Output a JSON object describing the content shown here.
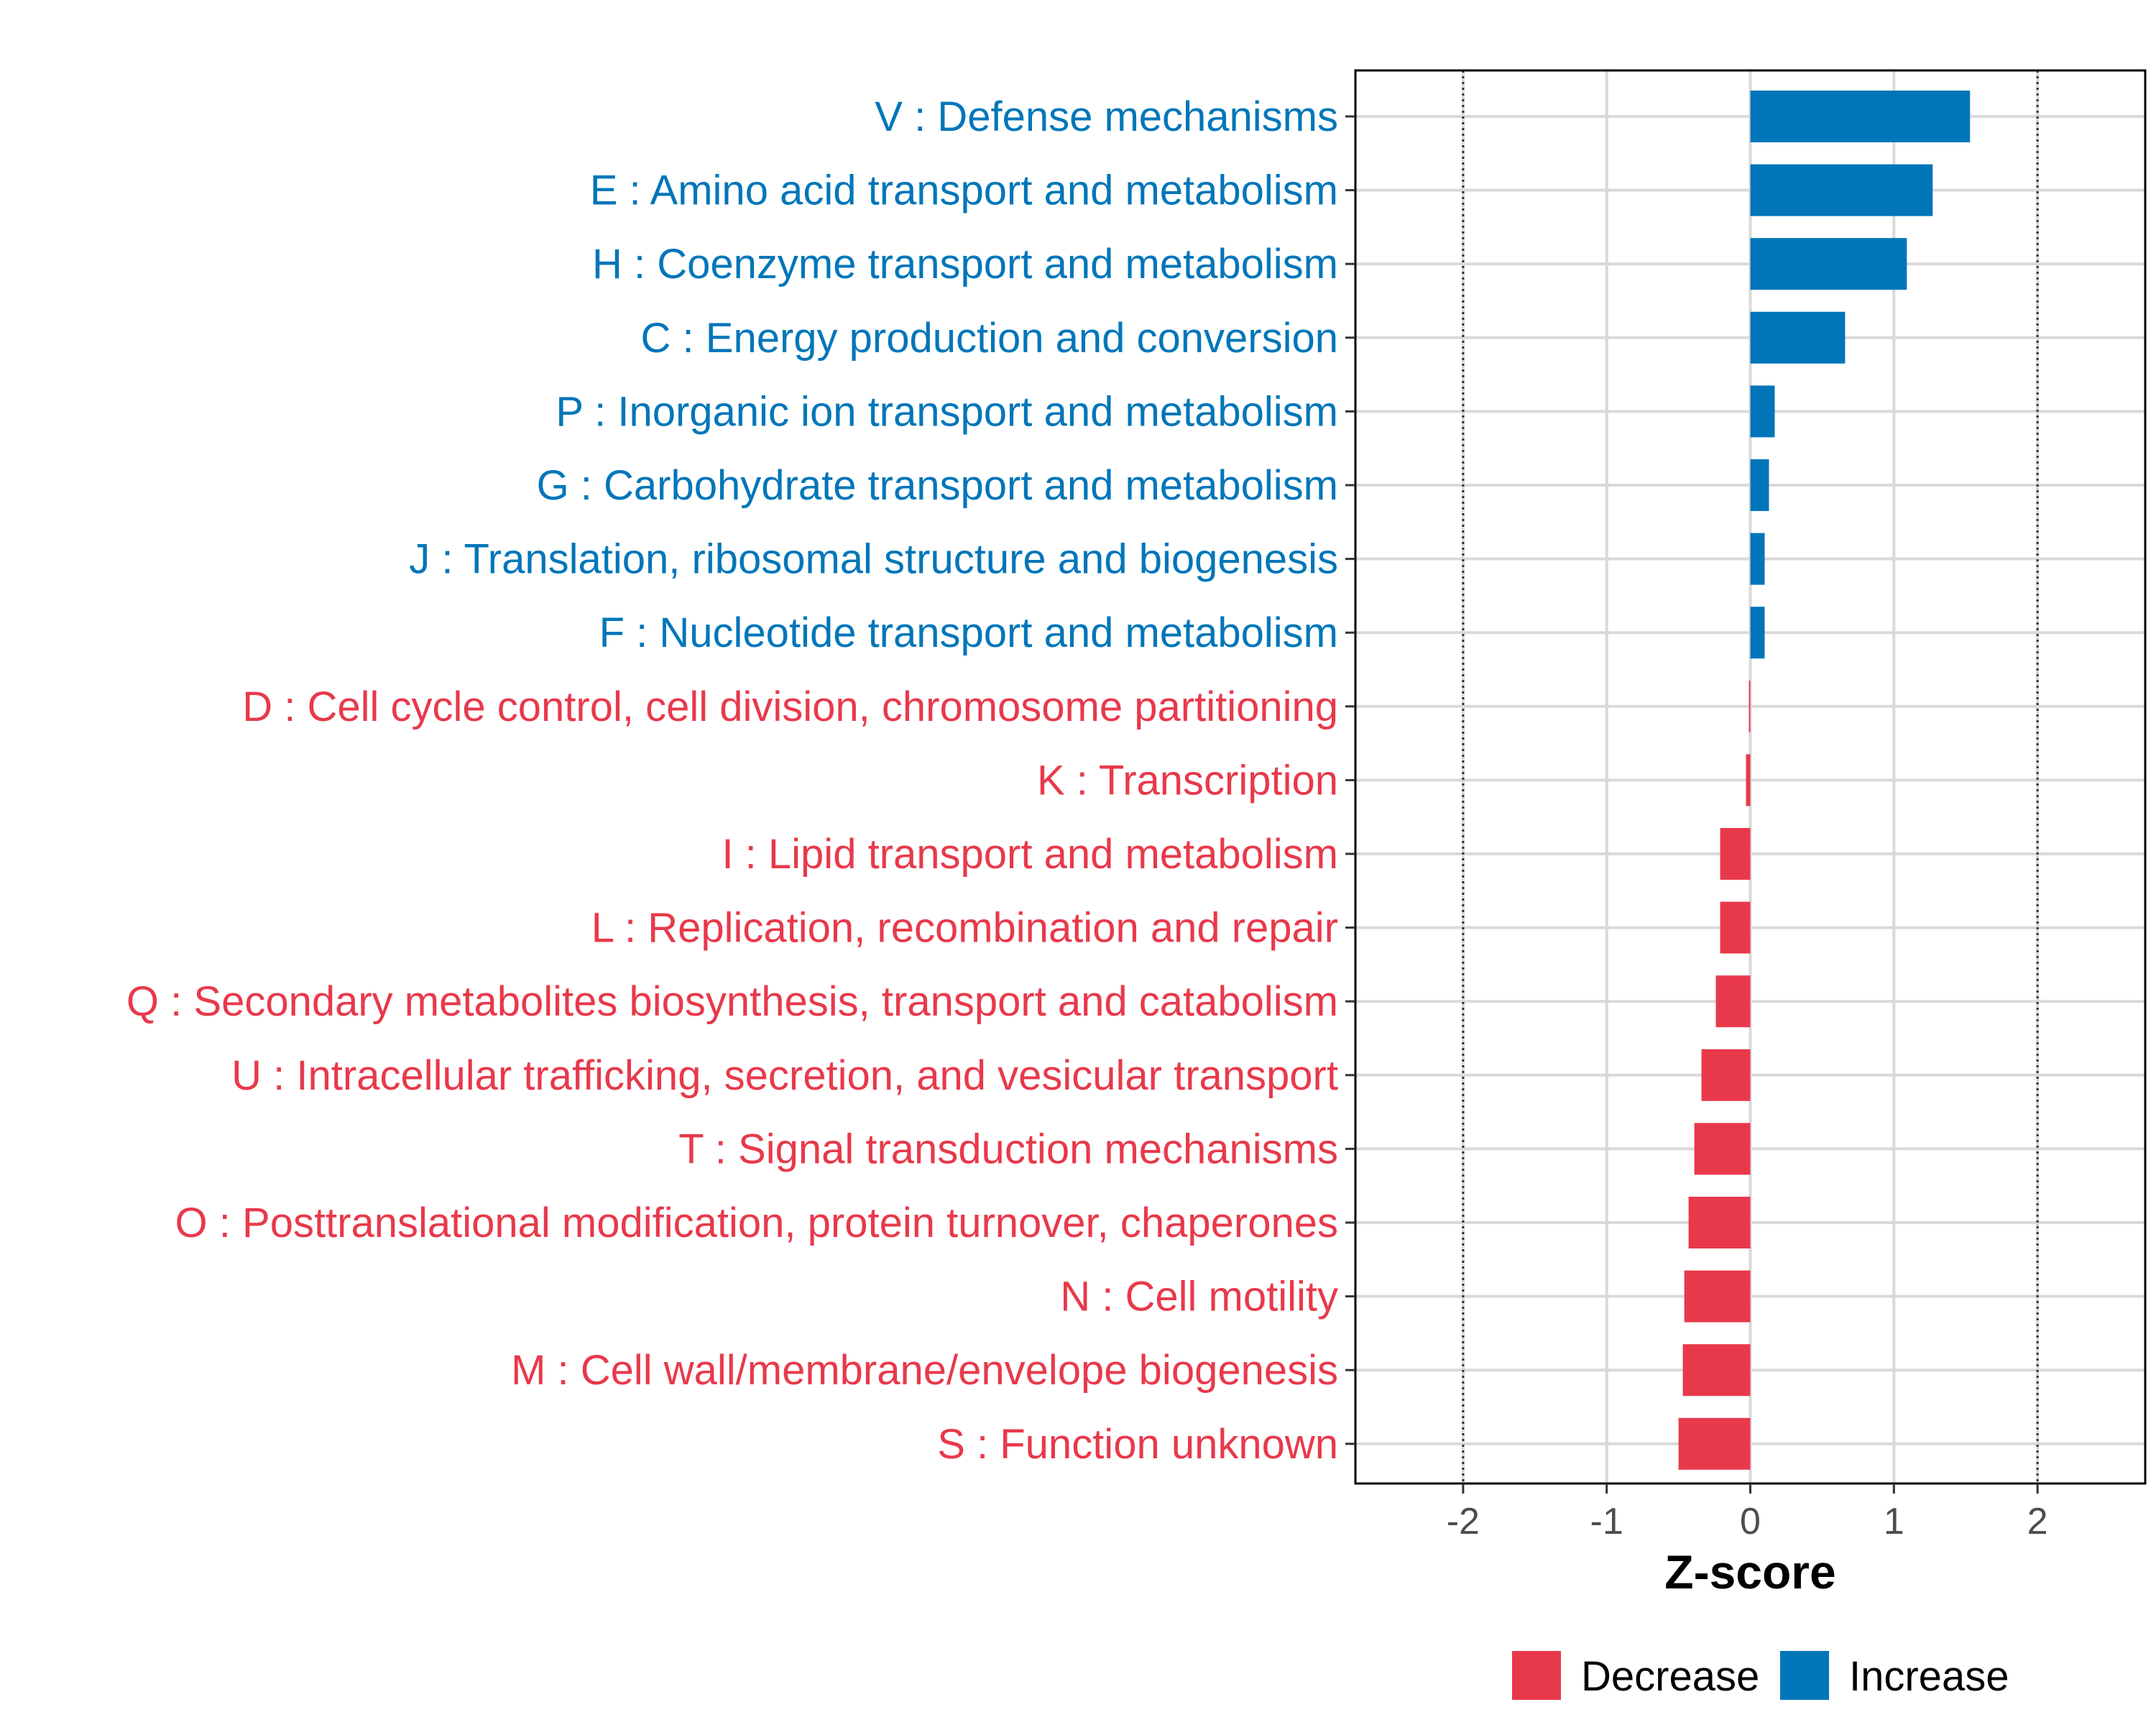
{
  "chart_data": {
    "type": "bar",
    "orientation": "horizontal",
    "xlabel": "Z-score",
    "xlim": [
      -2.75,
      2.75
    ],
    "xticks": [
      -2,
      -1,
      0,
      1,
      2
    ],
    "xtick_labels": [
      "-2",
      "-1",
      "0",
      "1",
      "2"
    ],
    "reference_lines": [
      -2,
      2
    ],
    "grid": true,
    "legend_position": "bottom",
    "categories": [
      "V : Defense mechanisms",
      "E : Amino acid transport and metabolism",
      "H : Coenzyme transport and metabolism",
      "C : Energy production and conversion",
      "P : Inorganic ion transport and metabolism",
      "G : Carbohydrate transport and metabolism",
      "J : Translation, ribosomal structure and biogenesis",
      "F : Nucleotide transport and metabolism",
      "D : Cell cycle control, cell division, chromosome partitioning",
      "K : Transcription",
      "I : Lipid transport and metabolism",
      "L : Replication, recombination and repair",
      "Q : Secondary metabolites biosynthesis, transport and catabolism",
      "U : Intracellular trafficking, secretion, and vesicular transport",
      "T : Signal transduction mechanisms",
      "O : Posttranslational modification, protein turnover, chaperones",
      "N : Cell motility",
      "M : Cell wall/membrane/envelope biogenesis",
      "S : Function unknown"
    ],
    "values": [
      1.53,
      1.27,
      1.09,
      0.66,
      0.17,
      0.13,
      0.1,
      0.1,
      -0.01,
      -0.03,
      -0.21,
      -0.21,
      -0.24,
      -0.34,
      -0.39,
      -0.43,
      -0.46,
      -0.47,
      -0.5
    ],
    "groups": [
      "Increase",
      "Increase",
      "Increase",
      "Increase",
      "Increase",
      "Increase",
      "Increase",
      "Increase",
      "Decrease",
      "Decrease",
      "Decrease",
      "Decrease",
      "Decrease",
      "Decrease",
      "Decrease",
      "Decrease",
      "Decrease",
      "Decrease",
      "Decrease"
    ],
    "legend": [
      {
        "name": "Decrease",
        "color": "#E8394B"
      },
      {
        "name": "Increase",
        "color": "#0076B9"
      }
    ]
  }
}
